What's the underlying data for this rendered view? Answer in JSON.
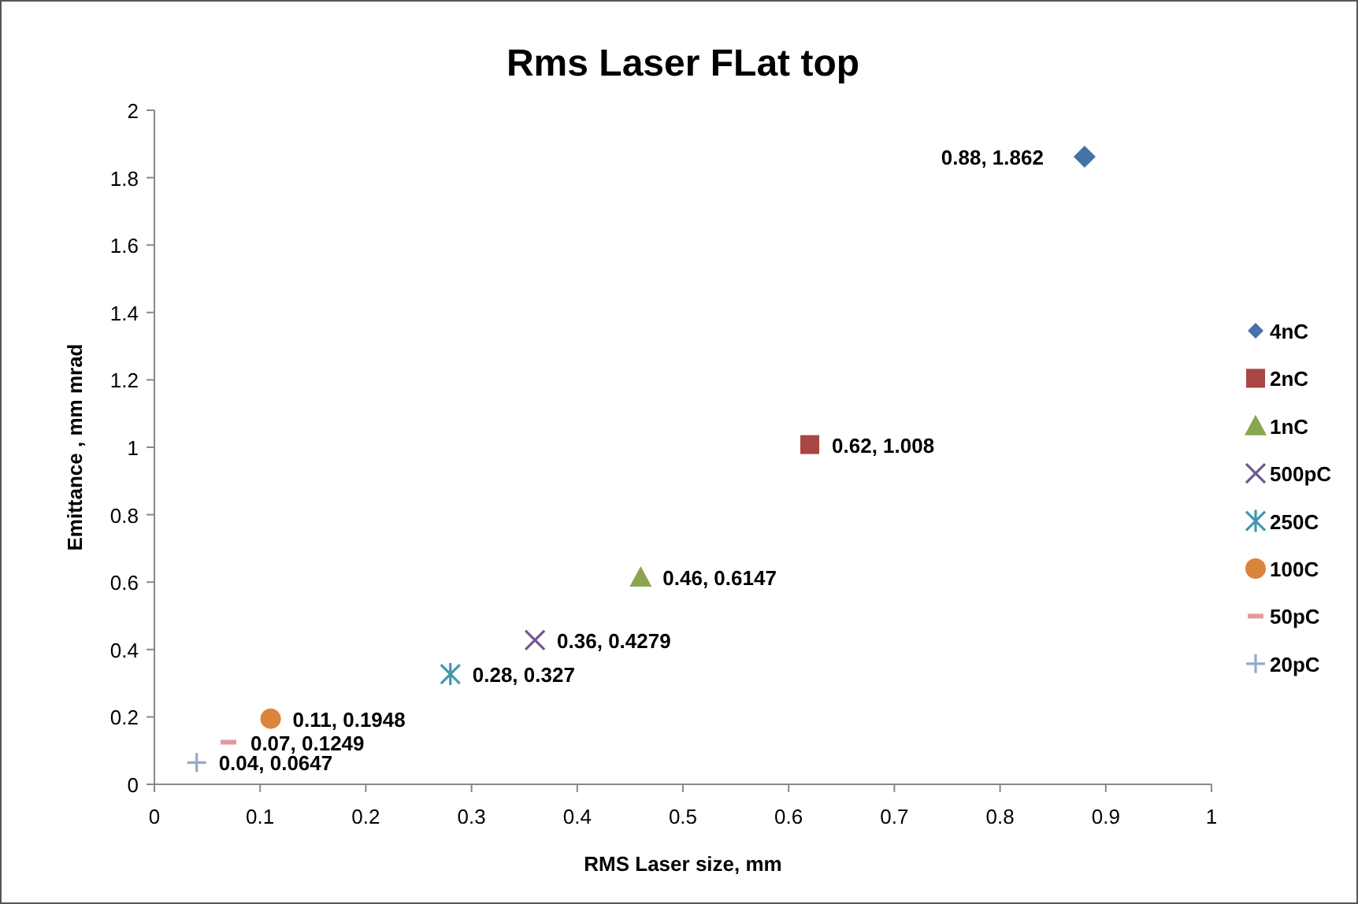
{
  "chart_data": {
    "type": "scatter",
    "title": "Rms Laser FLat top",
    "xlabel": "RMS Laser size, mm",
    "ylabel": "Emittance , mm mrad",
    "xlim": [
      0,
      1
    ],
    "xticks": [
      0,
      0.1,
      0.2,
      0.3,
      0.4,
      0.5,
      0.6,
      0.7,
      0.8,
      0.9,
      1
    ],
    "ylim": [
      0,
      2
    ],
    "yticks": [
      0,
      0.2,
      0.4,
      0.6,
      0.8,
      1,
      1.2,
      1.4,
      1.6,
      1.8,
      2
    ],
    "grid": false,
    "legend": "right",
    "series": [
      {
        "name": "4nC",
        "color": "#4572a7",
        "x": [
          0.88
        ],
        "values": [
          1.862
        ],
        "value_labels": [
          "0.88, 1.862"
        ]
      },
      {
        "name": "2nC",
        "color": "#aa4643",
        "x": [
          0.62
        ],
        "values": [
          1.008
        ],
        "value_labels": [
          "0.62, 1.008"
        ]
      },
      {
        "name": "1nC",
        "color": "#89a54e",
        "x": [
          0.46
        ],
        "values": [
          0.6147
        ],
        "value_labels": [
          "0.46, 0.6147"
        ]
      },
      {
        "name": "500pC",
        "color": "#71588f",
        "x": [
          0.36
        ],
        "values": [
          0.4279
        ],
        "value_labels": [
          "0.36, 0.4279"
        ]
      },
      {
        "name": "250C",
        "color": "#4198af",
        "x": [
          0.28
        ],
        "values": [
          0.327
        ],
        "value_labels": [
          "0.28, 0.327"
        ]
      },
      {
        "name": "100C",
        "color": "#db843d",
        "x": [
          0.11
        ],
        "values": [
          0.1948
        ],
        "value_labels": [
          "0.11, 0.1948"
        ]
      },
      {
        "name": "50pC",
        "color": "#e19a9a",
        "x": [
          0.07
        ],
        "values": [
          0.1249
        ],
        "value_labels": [
          "0.07, 0.1249"
        ]
      },
      {
        "name": "20pC",
        "color": "#93a9cf",
        "x": [
          0.04
        ],
        "values": [
          0.0647
        ],
        "value_labels": [
          "0.04, 0.0647"
        ]
      }
    ]
  }
}
